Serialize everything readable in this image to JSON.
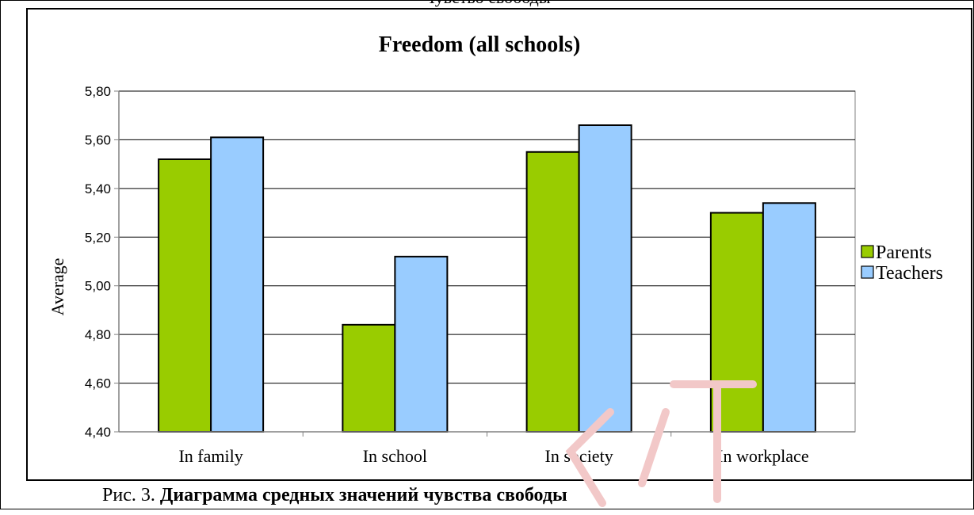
{
  "page": {
    "top_caption": "Чувство свободы",
    "figure_number": "Рис. 3.",
    "figure_caption": "Диаграмма средных значений чувства свободы"
  },
  "chart_data": {
    "type": "bar",
    "title": "Freedom (all schools)",
    "xlabel": "",
    "ylabel": "Average",
    "categories": [
      "In family",
      "In school",
      "In society",
      "In workplace"
    ],
    "series": [
      {
        "name": "Parents",
        "values": [
          5.52,
          4.84,
          5.55,
          5.3
        ],
        "color": "#99cc00"
      },
      {
        "name": "Teachers",
        "values": [
          5.61,
          5.12,
          5.66,
          5.34
        ],
        "color": "#99ccff"
      }
    ],
    "ylim": [
      4.4,
      5.8
    ],
    "y_ticks": [
      "4,40",
      "4,60",
      "4,80",
      "5,00",
      "5,20",
      "5,40",
      "5,60",
      "5,80"
    ],
    "grid": true,
    "legend_position": "right",
    "plot_background": "#ffffff",
    "axis_color": "#808080"
  }
}
